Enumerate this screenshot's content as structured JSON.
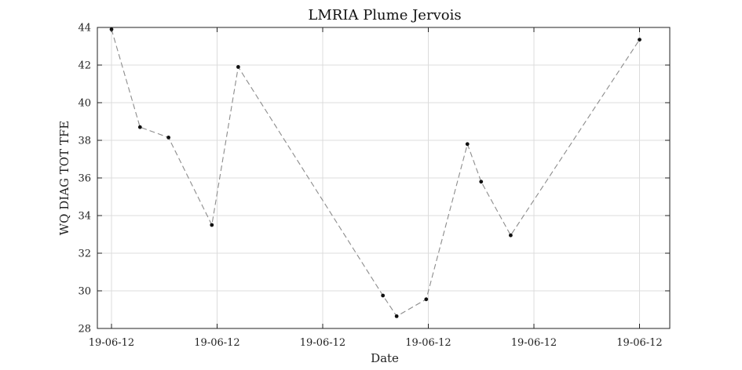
{
  "chart_data": {
    "type": "line",
    "title": "LMRIA Plume Jervois",
    "xlabel": "Date",
    "ylabel": "WQ DIAG TOT TFE",
    "ylim": [
      28,
      44
    ],
    "y_ticks": [
      28,
      30,
      32,
      34,
      36,
      38,
      40,
      42,
      44
    ],
    "x_tick_labels": [
      "19-06-12",
      "19-06-12",
      "19-06-12",
      "19-06-12",
      "19-06-12",
      "19-06-12"
    ],
    "grid": true,
    "series": [
      {
        "x": [
          0.0,
          0.27,
          0.54,
          0.95,
          1.2,
          2.57,
          2.7,
          2.98,
          3.37,
          3.5,
          3.78,
          5.0
        ],
        "values": [
          43.9,
          38.7,
          38.15,
          33.5,
          41.9,
          29.75,
          28.65,
          29.55,
          37.8,
          35.8,
          32.95,
          43.35
        ]
      }
    ],
    "colors": {
      "line": "#8c8c8c",
      "marker": "#111111",
      "grid": "#dcdcdc"
    }
  }
}
